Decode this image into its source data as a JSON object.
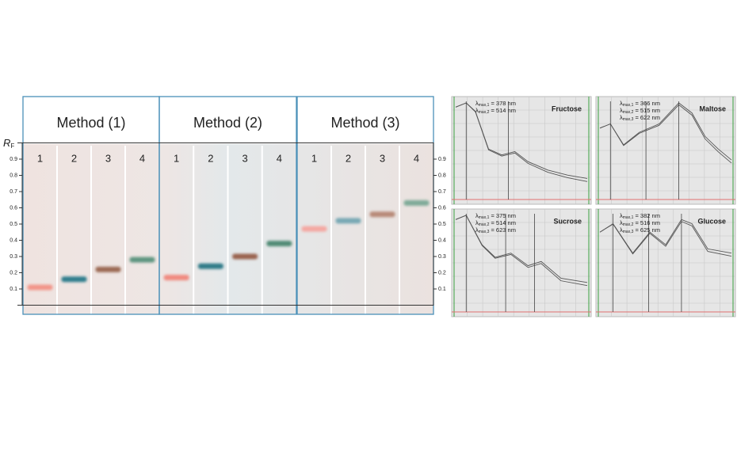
{
  "tlc": {
    "axis_label": {
      "main": "R",
      "sub": "F"
    },
    "ylim": [
      0,
      1
    ],
    "yticks": [
      0.1,
      0.2,
      0.3,
      0.4,
      0.5,
      0.6,
      0.7,
      0.8,
      0.9
    ],
    "methods": [
      {
        "title": "Method (1)",
        "lanes": [
          {
            "label": "1",
            "rf": 0.11,
            "color": "#f2968a"
          },
          {
            "label": "2",
            "rf": 0.16,
            "color": "#2e7d8c"
          },
          {
            "label": "3",
            "rf": 0.22,
            "color": "#9c6a55"
          },
          {
            "label": "4",
            "rf": 0.28,
            "color": "#5f9580"
          }
        ]
      },
      {
        "title": "Method (2)",
        "lanes": [
          {
            "label": "1",
            "rf": 0.17,
            "color": "#f08a80"
          },
          {
            "label": "2",
            "rf": 0.24,
            "color": "#2f7a88"
          },
          {
            "label": "3",
            "rf": 0.3,
            "color": "#9a6450"
          },
          {
            "label": "4",
            "rf": 0.38,
            "color": "#4f8a75"
          }
        ]
      },
      {
        "title": "Method (3)",
        "lanes": [
          {
            "label": "1",
            "rf": 0.47,
            "color": "#f4a8a2"
          },
          {
            "label": "2",
            "rf": 0.52,
            "color": "#78a8b4"
          },
          {
            "label": "3",
            "rf": 0.56,
            "color": "#b88a78"
          },
          {
            "label": "4",
            "rf": 0.63,
            "color": "#7faa98"
          }
        ]
      }
    ]
  },
  "spectra": [
    {
      "name": "Fructose",
      "lambdas": [
        {
          "symbol": "λ",
          "sub": "max,1",
          "text": " = 378 nm"
        },
        {
          "symbol": "λ",
          "sub": "max,2",
          "text": " = 514 nm"
        }
      ]
    },
    {
      "name": "Maltose",
      "lambdas": [
        {
          "symbol": "λ",
          "sub": "max,1",
          "text": " = 366 nm"
        },
        {
          "symbol": "λ",
          "sub": "max,2",
          "text": " = 515 nm"
        },
        {
          "symbol": "λ",
          "sub": "max,3",
          "text": " = 622 nm"
        }
      ]
    },
    {
      "name": "Sucrose",
      "lambdas": [
        {
          "symbol": "λ",
          "sub": "max,1",
          "text": " = 375 nm"
        },
        {
          "symbol": "λ",
          "sub": "max,2",
          "text": " = 514 nm"
        },
        {
          "symbol": "λ",
          "sub": "max,3",
          "text": " = 623 nm"
        }
      ]
    },
    {
      "name": "Glucose",
      "lambdas": [
        {
          "symbol": "λ",
          "sub": "max,1",
          "text": " = 382 nm"
        },
        {
          "symbol": "λ",
          "sub": "max,2",
          "text": " = 516 nm"
        },
        {
          "symbol": "λ",
          "sub": "max,3",
          "text": " = 625 nm"
        }
      ]
    }
  ]
}
